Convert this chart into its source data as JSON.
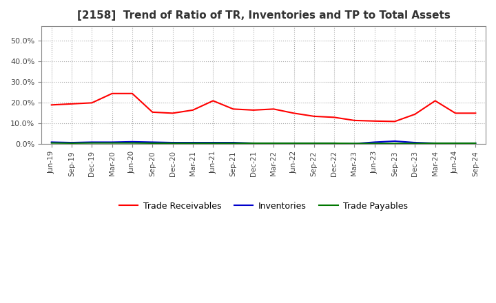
{
  "title": "[2158]  Trend of Ratio of TR, Inventories and TP to Total Assets",
  "title_fontsize": 11,
  "x_labels": [
    "Jun-19",
    "Sep-19",
    "Dec-19",
    "Mar-20",
    "Jun-20",
    "Sep-20",
    "Dec-20",
    "Mar-21",
    "Jun-21",
    "Sep-21",
    "Dec-21",
    "Mar-22",
    "Jun-22",
    "Sep-22",
    "Dec-22",
    "Mar-23",
    "Jun-23",
    "Sep-23",
    "Dec-23",
    "Mar-24",
    "Jun-24",
    "Sep-24"
  ],
  "trade_receivables": [
    0.19,
    0.195,
    0.2,
    0.245,
    0.245,
    0.155,
    0.15,
    0.165,
    0.21,
    0.17,
    0.165,
    0.17,
    0.15,
    0.135,
    0.13,
    0.115,
    0.112,
    0.11,
    0.145,
    0.21,
    0.15,
    0.15
  ],
  "inventories": [
    0.01,
    0.008,
    0.01,
    0.01,
    0.012,
    0.01,
    0.008,
    0.008,
    0.008,
    0.008,
    0.005,
    0.005,
    0.005,
    0.005,
    0.005,
    0.003,
    0.01,
    0.015,
    0.008,
    0.005,
    0.005,
    0.005
  ],
  "trade_payables": [
    0.006,
    0.005,
    0.006,
    0.006,
    0.006,
    0.005,
    0.005,
    0.005,
    0.005,
    0.005,
    0.005,
    0.005,
    0.005,
    0.005,
    0.005,
    0.004,
    0.004,
    0.004,
    0.004,
    0.005,
    0.005,
    0.005
  ],
  "tr_color": "#ff0000",
  "inv_color": "#0000cc",
  "tp_color": "#007700",
  "ylim": [
    0.0,
    0.57
  ],
  "yticks": [
    0.0,
    0.1,
    0.2,
    0.3,
    0.4,
    0.5
  ],
  "grid_color": "#aaaaaa",
  "background_color": "#ffffff",
  "legend_labels": [
    "Trade Receivables",
    "Inventories",
    "Trade Payables"
  ]
}
